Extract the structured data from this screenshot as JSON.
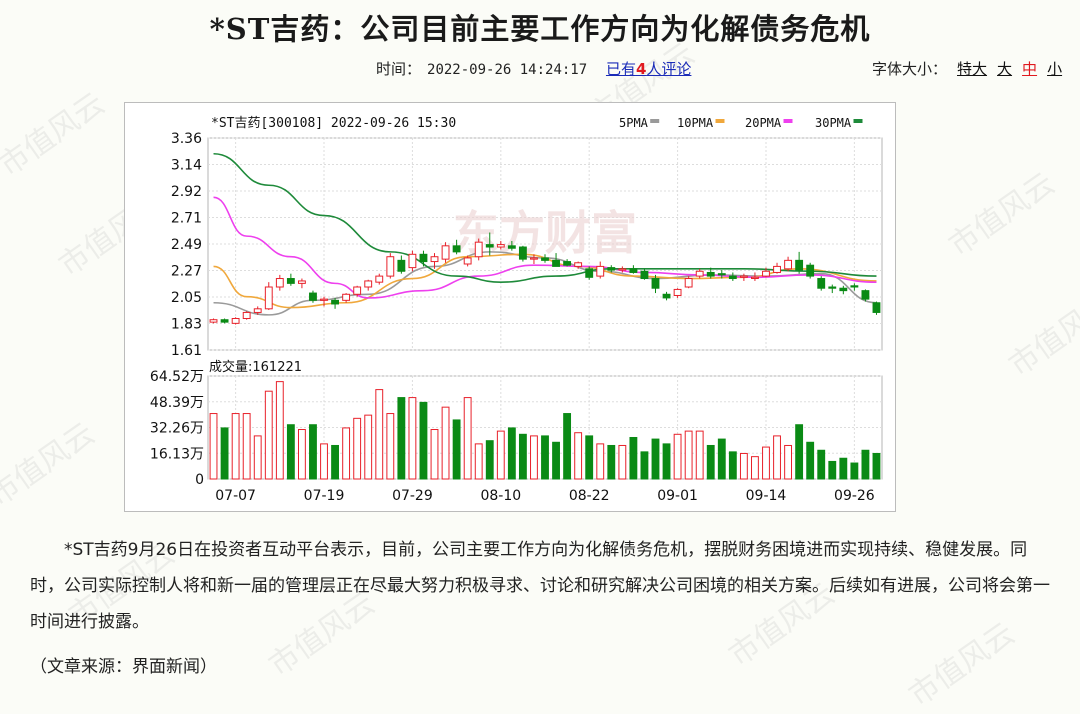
{
  "article": {
    "title": "*ST吉药：公司目前主要工作方向为化解债务危机",
    "time_label": "时间：",
    "time": "2022-09-26 14:24:17",
    "comments_prefix": "已有",
    "comments_count": "4",
    "comments_suffix": "人评论",
    "font_size_label": "字体大小：",
    "font_size_options": [
      "特大",
      "大",
      "中",
      "小"
    ],
    "font_size_selected": "中",
    "body": "*ST吉药9月26日在投资者互动平台表示，目前，公司主要工作方向为化解债务危机，摆脱财务困境进而实现持续、稳健发展。同时，公司实际控制人将和新一届的管理层正在尽最大努力积极寻求、讨论和研究解决公司困境的相关方案。后续如有进展，公司将会第一时间进行披露。",
    "source": "（文章来源：界面新闻）"
  },
  "watermark": {
    "site": "市值风云",
    "chart_logo": "东方财富"
  },
  "chart_data": {
    "type": "candlestick",
    "title": "*ST吉药[300108] 2022-09-26 15:30",
    "legend": [
      {
        "name": "5PMA",
        "color": "#9a9a9a"
      },
      {
        "name": "10PMA",
        "color": "#f0a83c"
      },
      {
        "name": "20PMA",
        "color": "#ee40ee"
      },
      {
        "name": "30PMA",
        "color": "#1e8a3a"
      }
    ],
    "up_color": "#e8212a",
    "down_color": "#0a8a15",
    "price_ticks": [
      "3.36",
      "3.14",
      "2.92",
      "2.71",
      "2.49",
      "2.27",
      "2.05",
      "1.83",
      "1.61"
    ],
    "price_range": [
      1.61,
      3.36
    ],
    "volume_label": "成交量:161221",
    "volume_ticks": [
      "64.52万",
      "48.39万",
      "32.26万",
      "16.13万",
      "0"
    ],
    "volume_max": 64.52,
    "date_ticks": [
      {
        "label": "07-07",
        "index": 2
      },
      {
        "label": "07-19",
        "index": 10
      },
      {
        "label": "07-29",
        "index": 18
      },
      {
        "label": "08-10",
        "index": 26
      },
      {
        "label": "08-22",
        "index": 34
      },
      {
        "label": "09-01",
        "index": 42
      },
      {
        "label": "09-14",
        "index": 50
      },
      {
        "label": "09-26",
        "index": 58
      }
    ],
    "candles": [
      [
        1.84,
        1.87,
        1.83,
        1.86
      ],
      [
        1.86,
        1.87,
        1.83,
        1.84
      ],
      [
        1.83,
        1.88,
        1.82,
        1.87
      ],
      [
        1.87,
        1.93,
        1.86,
        1.92
      ],
      [
        1.92,
        1.97,
        1.9,
        1.95
      ],
      [
        1.95,
        2.17,
        1.94,
        2.13
      ],
      [
        2.13,
        2.23,
        2.1,
        2.2
      ],
      [
        2.2,
        2.24,
        2.14,
        2.16
      ],
      [
        2.16,
        2.2,
        2.12,
        2.18
      ],
      [
        2.08,
        2.1,
        2.0,
        2.02
      ],
      [
        2.02,
        2.05,
        1.97,
        2.03
      ],
      [
        2.02,
        2.04,
        1.95,
        1.99
      ],
      [
        2.02,
        2.08,
        2.0,
        2.07
      ],
      [
        2.07,
        2.14,
        2.05,
        2.13
      ],
      [
        2.13,
        2.19,
        2.1,
        2.18
      ],
      [
        2.17,
        2.24,
        2.15,
        2.22
      ],
      [
        2.22,
        2.41,
        2.2,
        2.38
      ],
      [
        2.35,
        2.39,
        2.24,
        2.26
      ],
      [
        2.29,
        2.43,
        2.26,
        2.4
      ],
      [
        2.4,
        2.43,
        2.3,
        2.34
      ],
      [
        2.34,
        2.41,
        2.28,
        2.38
      ],
      [
        2.36,
        2.5,
        2.33,
        2.47
      ],
      [
        2.47,
        2.52,
        2.4,
        2.42
      ],
      [
        2.32,
        2.39,
        2.3,
        2.37
      ],
      [
        2.38,
        2.53,
        2.35,
        2.5
      ],
      [
        2.48,
        2.58,
        2.39,
        2.46
      ],
      [
        2.46,
        2.51,
        2.44,
        2.48
      ],
      [
        2.47,
        2.51,
        2.43,
        2.45
      ],
      [
        2.46,
        2.47,
        2.34,
        2.36
      ],
      [
        2.36,
        2.4,
        2.32,
        2.37
      ],
      [
        2.37,
        2.4,
        2.33,
        2.35
      ],
      [
        2.35,
        2.41,
        2.3,
        2.3
      ],
      [
        2.34,
        2.36,
        2.3,
        2.31
      ],
      [
        2.3,
        2.34,
        2.28,
        2.33
      ],
      [
        2.28,
        2.3,
        2.19,
        2.21
      ],
      [
        2.22,
        2.34,
        2.2,
        2.3
      ],
      [
        2.29,
        2.31,
        2.25,
        2.27
      ],
      [
        2.28,
        2.3,
        2.25,
        2.28
      ],
      [
        2.28,
        2.31,
        2.24,
        2.25
      ],
      [
        2.26,
        2.28,
        2.19,
        2.2
      ],
      [
        2.2,
        2.23,
        2.08,
        2.12
      ],
      [
        2.07,
        2.09,
        2.02,
        2.04
      ],
      [
        2.06,
        2.12,
        2.04,
        2.11
      ],
      [
        2.13,
        2.22,
        2.12,
        2.2
      ],
      [
        2.22,
        2.28,
        2.2,
        2.26
      ],
      [
        2.25,
        2.29,
        2.2,
        2.22
      ],
      [
        2.24,
        2.27,
        2.2,
        2.23
      ],
      [
        2.22,
        2.25,
        2.18,
        2.2
      ],
      [
        2.21,
        2.24,
        2.18,
        2.22
      ],
      [
        2.21,
        2.25,
        2.18,
        2.21
      ],
      [
        2.22,
        2.29,
        2.21,
        2.26
      ],
      [
        2.25,
        2.33,
        2.24,
        2.3
      ],
      [
        2.28,
        2.38,
        2.26,
        2.35
      ],
      [
        2.35,
        2.42,
        2.24,
        2.27
      ],
      [
        2.31,
        2.33,
        2.2,
        2.22
      ],
      [
        2.2,
        2.22,
        2.1,
        2.12
      ],
      [
        2.13,
        2.15,
        2.08,
        2.12
      ],
      [
        2.12,
        2.14,
        2.07,
        2.1
      ],
      [
        2.14,
        2.16,
        2.1,
        2.13
      ],
      [
        2.1,
        2.11,
        2.01,
        2.03
      ],
      [
        2.0,
        2.01,
        1.9,
        1.92
      ]
    ],
    "volumes": [
      41,
      32,
      41,
      41,
      27,
      55,
      61,
      34,
      31,
      34,
      22,
      21,
      32,
      38,
      40,
      56,
      41,
      51,
      51,
      48,
      31,
      45,
      37,
      51,
      22,
      24,
      30,
      32,
      28,
      27,
      27,
      23,
      41,
      29,
      27,
      22,
      21,
      21,
      26,
      17,
      25,
      22,
      28,
      30,
      30,
      21,
      25,
      17,
      16,
      14,
      20,
      27,
      21,
      34,
      23,
      18,
      11,
      13,
      10,
      18,
      16
    ],
    "ma_lines": {
      "5PMA": [
        [
          0,
          2.0
        ],
        [
          5,
          1.9
        ],
        [
          9,
          2.02
        ],
        [
          14,
          2.07
        ],
        [
          20,
          2.3
        ],
        [
          25,
          2.42
        ],
        [
          30,
          2.37
        ],
        [
          35,
          2.26
        ],
        [
          40,
          2.2
        ],
        [
          45,
          2.23
        ],
        [
          50,
          2.22
        ],
        [
          55,
          2.24
        ],
        [
          60,
          2.0
        ]
      ],
      "10PMA": [
        [
          0,
          2.3
        ],
        [
          3,
          2.05
        ],
        [
          7,
          1.96
        ],
        [
          12,
          2.0
        ],
        [
          18,
          2.2
        ],
        [
          23,
          2.38
        ],
        [
          28,
          2.4
        ],
        [
          33,
          2.3
        ],
        [
          38,
          2.22
        ],
        [
          43,
          2.2
        ],
        [
          48,
          2.21
        ],
        [
          53,
          2.28
        ],
        [
          60,
          2.18
        ]
      ],
      "20PMA": [
        [
          0,
          2.87
        ],
        [
          3,
          2.55
        ],
        [
          7,
          2.38
        ],
        [
          11,
          2.16
        ],
        [
          14,
          2.04
        ],
        [
          19,
          2.1
        ],
        [
          24,
          2.22
        ],
        [
          29,
          2.31
        ],
        [
          34,
          2.3
        ],
        [
          39,
          2.25
        ],
        [
          44,
          2.23
        ],
        [
          49,
          2.21
        ],
        [
          54,
          2.23
        ],
        [
          60,
          2.17
        ]
      ],
      "30PMA": [
        [
          0,
          3.23
        ],
        [
          5,
          2.97
        ],
        [
          10,
          2.72
        ],
        [
          16,
          2.42
        ],
        [
          22,
          2.22
        ],
        [
          26,
          2.17
        ],
        [
          31,
          2.22
        ],
        [
          36,
          2.28
        ],
        [
          42,
          2.28
        ],
        [
          48,
          2.28
        ],
        [
          54,
          2.26
        ],
        [
          60,
          2.22
        ]
      ]
    }
  }
}
